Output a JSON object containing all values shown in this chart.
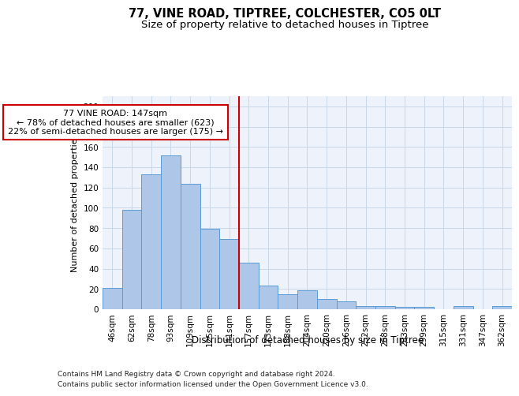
{
  "title_line1": "77, VINE ROAD, TIPTREE, COLCHESTER, CO5 0LT",
  "title_line2": "Size of property relative to detached houses in Tiptree",
  "xlabel": "Distribution of detached houses by size in Tiptree",
  "ylabel": "Number of detached properties",
  "bar_labels": [
    "46sqm",
    "62sqm",
    "78sqm",
    "93sqm",
    "109sqm",
    "125sqm",
    "141sqm",
    "157sqm",
    "173sqm",
    "188sqm",
    "204sqm",
    "220sqm",
    "236sqm",
    "252sqm",
    "268sqm",
    "283sqm",
    "299sqm",
    "315sqm",
    "331sqm",
    "347sqm",
    "362sqm"
  ],
  "bar_values": [
    21,
    98,
    133,
    152,
    124,
    79,
    69,
    46,
    23,
    15,
    19,
    10,
    8,
    3,
    3,
    2,
    2,
    0,
    3,
    0,
    3
  ],
  "bar_color": "#aec6e8",
  "bar_edge_color": "#5b9bd5",
  "grid_color": "#c8d8e8",
  "background_color": "#eef2fa",
  "vline_x_index": 6,
  "vline_color": "#cc0000",
  "annotation_text": "77 VINE ROAD: 147sqm\n← 78% of detached houses are smaller (623)\n22% of semi-detached houses are larger (175) →",
  "annotation_box_color": "#ffffff",
  "annotation_box_edge": "#cc0000",
  "ylim": [
    0,
    210
  ],
  "yticks": [
    0,
    20,
    40,
    60,
    80,
    100,
    120,
    140,
    160,
    180,
    200
  ],
  "footer_line1": "Contains HM Land Registry data © Crown copyright and database right 2024.",
  "footer_line2": "Contains public sector information licensed under the Open Government Licence v3.0.",
  "title_fontsize": 10.5,
  "subtitle_fontsize": 9.5,
  "axis_label_fontsize": 8.5,
  "tick_fontsize": 7.5,
  "annotation_fontsize": 8,
  "footer_fontsize": 6.5,
  "ylabel_fontsize": 8
}
